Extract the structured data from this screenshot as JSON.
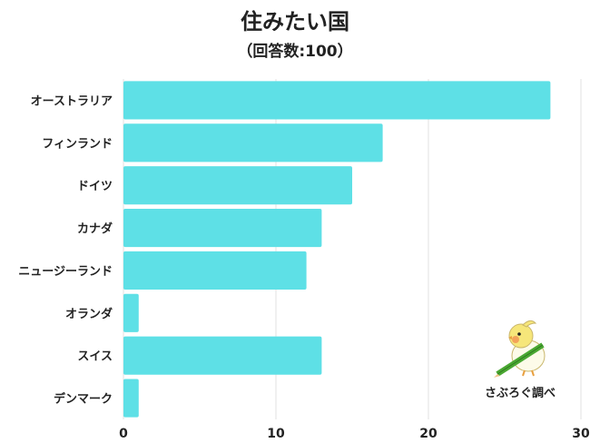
{
  "chart_data": {
    "type": "bar",
    "orientation": "horizontal",
    "title": "住みたい国",
    "subtitle": "（回答数:100）",
    "categories": [
      "オーストラリア",
      "フィンランド",
      "ドイツ",
      "カナダ",
      "ニュージーランド",
      "オランダ",
      "スイス",
      "デンマーク"
    ],
    "values": [
      28,
      17,
      15,
      13,
      12,
      1,
      13,
      1
    ],
    "xlim": [
      0,
      30
    ],
    "xticks": [
      "0",
      "10",
      "20",
      "30"
    ],
    "grid": true,
    "bar_color": "#5ee0e6"
  },
  "credit": "さぶろぐ調べ",
  "mascot_icon": "bird-with-pencil-icon"
}
